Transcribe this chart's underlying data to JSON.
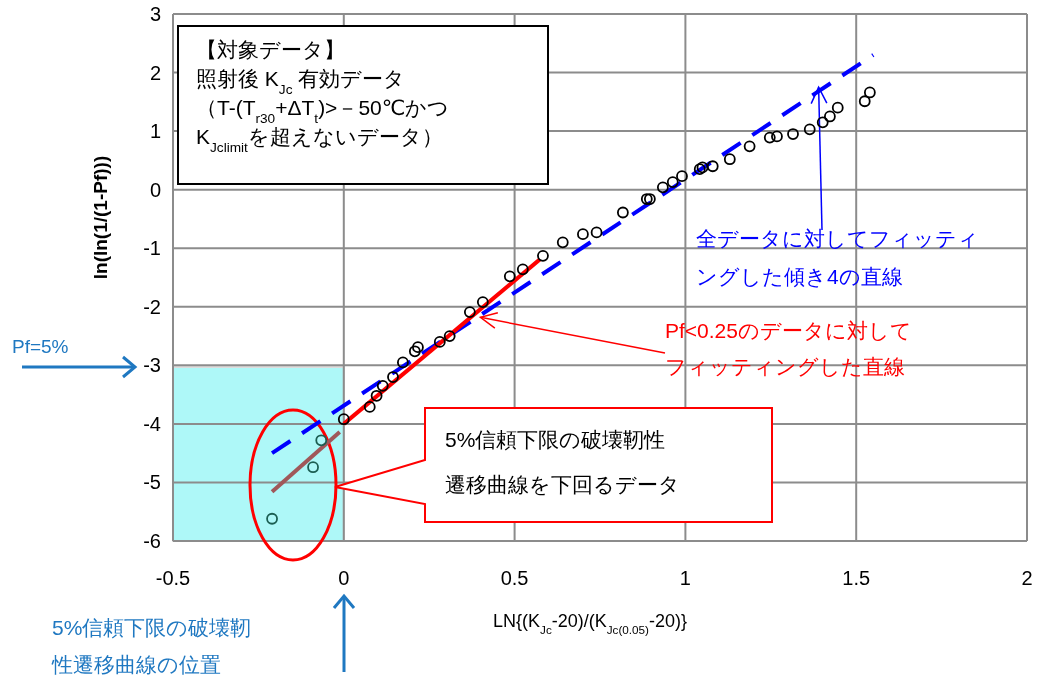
{
  "chart_data": {
    "type": "scatter",
    "xlabel": "LN{(K$_{Jc}$-20)/(K$_{Jc(0.05)}$-20)}",
    "ylabel": "ln(ln(1/(1-Pf)))",
    "xlim": [
      -0.5,
      2
    ],
    "xticks": [
      -0.5,
      0,
      0.5,
      1,
      1.5,
      2
    ],
    "ylim": [
      -6,
      3
    ],
    "yticks": [
      -6,
      -5,
      -4,
      -3,
      -2,
      -1,
      0,
      1,
      2,
      3
    ],
    "grid": true,
    "marker": "circle",
    "bands": [
      {
        "axis": "x",
        "from": -0.5,
        "to": 0,
        "color": "#aef8f8"
      }
    ],
    "annotations": [
      "【対象データ】照射後 K$_{Jc}$ 有効データ（T-(T$_{r30}$+ΔT$_{t}$)>－50℃かつK$_{Jclimit}$を超えないデータ）",
      {
        "text": "Pf<0.25のデータに対してフィッティングした直線",
        "x": 0.4,
        "y": -2.18
      },
      {
        "text": "全データに対してフィッティングした傾き4の直線",
        "x": 1.39,
        "y": 1.75
      },
      "5%信頼下限の破壊靭性遷移曲線を下回るデータ",
      "Pf=5%",
      "5%信頼下限の破壊靭性遷移曲線の位置"
    ],
    "series": [
      {
        "color": "#000000",
        "x": [
          0,
          0.076,
          0.096,
          0.114,
          0.144,
          0.173,
          0.208,
          0.217,
          0.281,
          0.31,
          0.369,
          0.407,
          0.486,
          0.524,
          0.583,
          0.641,
          0.7,
          0.74,
          0.817,
          0.887,
          0.896,
          0.934,
          0.963,
          0.99,
          1.042,
          1.05,
          1.08,
          1.13,
          1.188,
          1.247,
          1.268,
          1.315,
          1.364,
          1.402,
          1.423,
          1.446,
          1.525,
          1.54
        ],
        "values": [
          -3.92,
          -3.71,
          -3.52,
          -3.35,
          -3.2,
          -2.95,
          -2.76,
          -2.69,
          -2.6,
          -2.5,
          -2.09,
          -1.92,
          -1.48,
          -1.36,
          -1.13,
          -0.9,
          -0.76,
          -0.73,
          -0.39,
          -0.16,
          -0.16,
          0.04,
          0.13,
          0.23,
          0.35,
          0.38,
          0.4,
          0.52,
          0.74,
          0.89,
          0.91,
          0.95,
          1.03,
          1.15,
          1.25,
          1.4,
          1.51,
          1.66
        ]
      },
      {
        "color": "#1b5e52",
        "x": [
          -0.21,
          -0.09,
          -0.066
        ],
        "values": [
          -5.62,
          -4.74,
          -4.28
        ]
      },
      {
        "type": "line",
        "color": "#0000ff",
        "line_style": "dashed",
        "marker": "none",
        "x": [
          -0.21,
          1.55
        ],
        "values": [
          -4.5,
          2.3
        ]
      },
      {
        "type": "line",
        "color": "#ff0000",
        "marker": "none",
        "x": [
          0,
          0.574
        ],
        "values": [
          -4.0,
          -1.19
        ]
      },
      {
        "type": "line",
        "color": "#a0585a",
        "marker": "none",
        "x": [
          -0.21,
          -0.012
        ],
        "values": [
          -5.16,
          -4.14
        ]
      }
    ]
  }
}
